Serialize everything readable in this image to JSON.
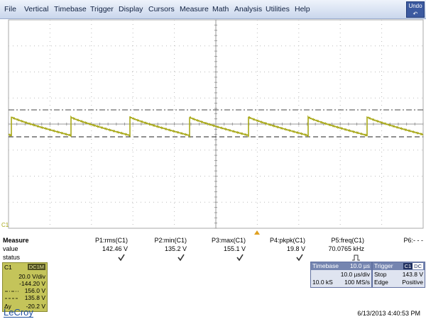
{
  "menu": {
    "items": [
      "File",
      "Vertical",
      "Timebase",
      "Trigger",
      "Display",
      "Cursors",
      "Measure",
      "Math",
      "Analysis",
      "Utilities",
      "Help"
    ],
    "undo": "Undo"
  },
  "trace_label": "C1",
  "measure": {
    "title": "Measure",
    "row_labels": [
      "value",
      "status"
    ],
    "columns": [
      {
        "name": "P1:rms(C1)",
        "value": "142.46 V"
      },
      {
        "name": "P2:min(C1)",
        "value": "135.2 V"
      },
      {
        "name": "P3:max(C1)",
        "value": "155.1 V"
      },
      {
        "name": "P4:pkpk(C1)",
        "value": "19.8 V"
      },
      {
        "name": "P5:freq(C1)",
        "value": "70.0765 kHz"
      },
      {
        "name": "P6:- - -"
      }
    ]
  },
  "channel": {
    "name": "C1",
    "coupling": "DC1M",
    "scale": "20.0 V/div",
    "offset": "-144.20 V",
    "cursor1": "156.0 V",
    "cursor2": "135.8 V",
    "delta_label": "Δy",
    "delta": "-20.2 V"
  },
  "timebase": {
    "title": "Timebase",
    "delay": "10.0 µs",
    "scale": "10.0 µs/div",
    "samples": "10.0 kS",
    "rate": "100 MS/s"
  },
  "trigger": {
    "title": "Trigger",
    "source": "C1",
    "coupling": "DC",
    "mode": "Stop",
    "level": "143.8 V",
    "type": "Edge",
    "slope": "Positive"
  },
  "brand": "LeCroy",
  "timestamp": "6/13/2013 4:40:53 PM"
}
